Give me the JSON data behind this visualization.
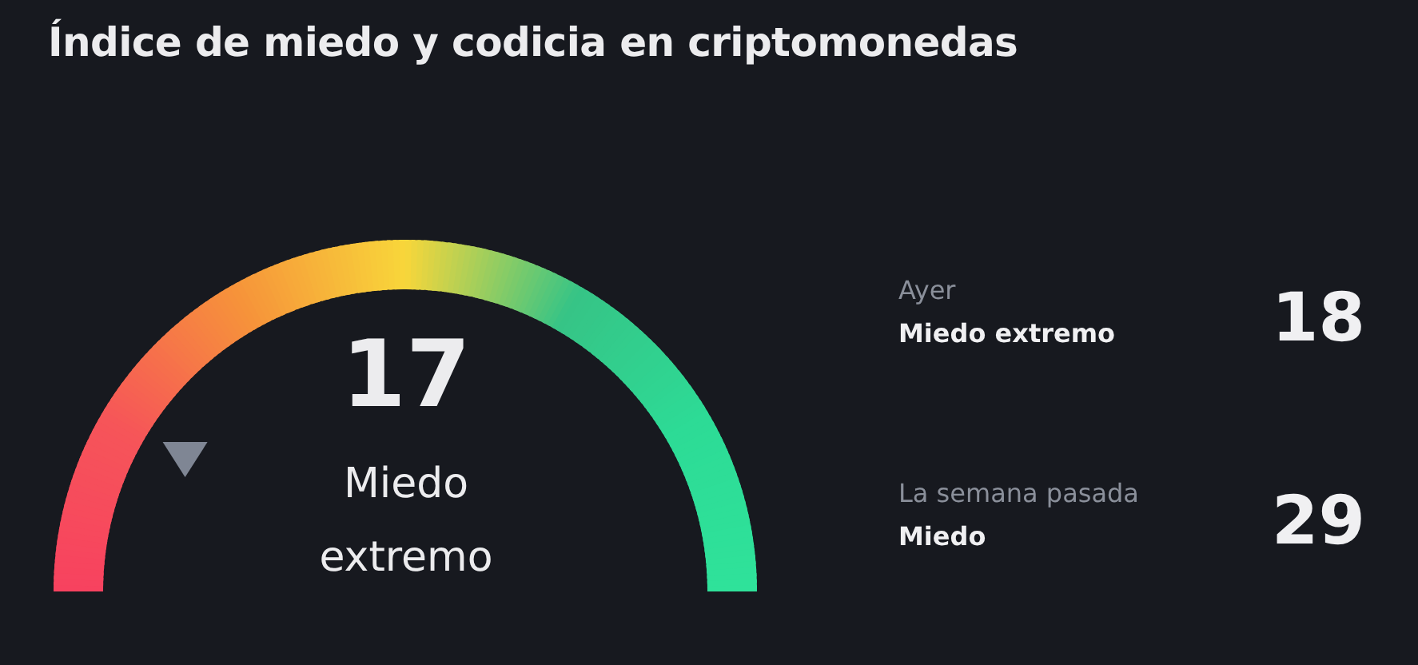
{
  "chart_data": [
    {
      "type": "other",
      "title": "Índice de miedo y codicia en criptomonedas",
      "categories": [
        "Miedo extremo"
      ],
      "values": [
        17
      ],
      "data_labels": true
    },
    {
      "type": "other",
      "categories": [
        "Ayer",
        "La semana pasada"
      ],
      "values": [
        18,
        29
      ],
      "annotations": [
        "Miedo extremo",
        "Miedo"
      ],
      "data_labels": true
    }
  ]
}
